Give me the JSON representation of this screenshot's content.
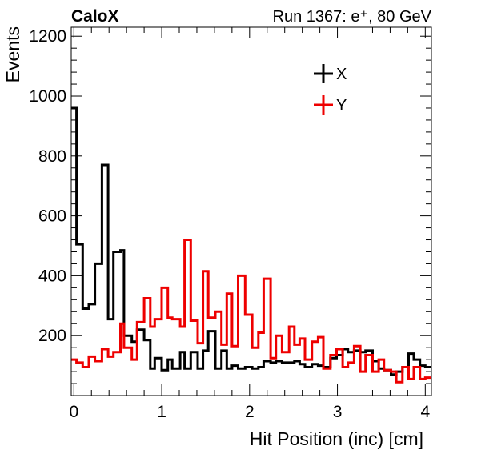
{
  "chart_data": {
    "type": "line",
    "title_left": "CaloX",
    "title_right": "Run 1367: e⁺, 80 GeV",
    "xlabel": "Hit Position (inc) [cm]",
    "ylabel": "Events",
    "xlim": [
      -0.03,
      4.07
    ],
    "ylim": [
      0,
      1230
    ],
    "xticks": [
      0,
      1,
      2,
      3,
      4
    ],
    "xtick_labels": [
      "0",
      "1",
      "2",
      "3",
      "4"
    ],
    "yticks": [
      200,
      400,
      600,
      800,
      1000,
      1200
    ],
    "ytick_labels": [
      "200",
      "400",
      "600",
      "800",
      "1000",
      "1200"
    ],
    "legend": {
      "placement": "top-right",
      "entries": [
        "X",
        "Y"
      ]
    },
    "bin_edges": [
      -0.03,
      0.03,
      0.1,
      0.17,
      0.24,
      0.32,
      0.39,
      0.45,
      0.53,
      0.57,
      0.66,
      0.72,
      0.8,
      0.87,
      0.92,
      1.0,
      1.07,
      1.12,
      1.21,
      1.26,
      1.33,
      1.41,
      1.47,
      1.53,
      1.61,
      1.68,
      1.74,
      1.8,
      1.87,
      1.95,
      2.03,
      2.1,
      2.16,
      2.24,
      2.3,
      2.37,
      2.45,
      2.51,
      2.57,
      2.63,
      2.71,
      2.78,
      2.84,
      2.92,
      2.99,
      3.06,
      3.12,
      3.19,
      3.26,
      3.32,
      3.4,
      3.47,
      3.53,
      3.61,
      3.67,
      3.74,
      3.81,
      3.87,
      3.94,
      4.0,
      4.07
    ],
    "series": [
      {
        "name": "X",
        "color": "#000000",
        "values": [
          960,
          505,
          290,
          305,
          440,
          770,
          255,
          480,
          485,
          200,
          180,
          220,
          185,
          90,
          125,
          85,
          120,
          90,
          145,
          90,
          145,
          90,
          150,
          215,
          90,
          150,
          90,
          100,
          90,
          95,
          90,
          95,
          115,
          110,
          115,
          110,
          110,
          115,
          105,
          95,
          105,
          100,
          95,
          125,
          135,
          155,
          145,
          150,
          145,
          150,
          115,
          90,
          85,
          70,
          80,
          95,
          140,
          120,
          100,
          95
        ]
      },
      {
        "name": "Y",
        "color": "#ee0000",
        "values": [
          120,
          110,
          95,
          130,
          115,
          155,
          130,
          145,
          240,
          160,
          120,
          245,
          325,
          230,
          255,
          360,
          260,
          255,
          230,
          520,
          250,
          175,
          415,
          260,
          280,
          170,
          340,
          165,
          400,
          270,
          160,
          210,
          390,
          125,
          200,
          145,
          230,
          170,
          190,
          120,
          180,
          195,
          90,
          135,
          155,
          95,
          110,
          165,
          80,
          135,
          80,
          120,
          85,
          80,
          45,
          95,
          55,
          95,
          55,
          60
        ]
      }
    ]
  }
}
